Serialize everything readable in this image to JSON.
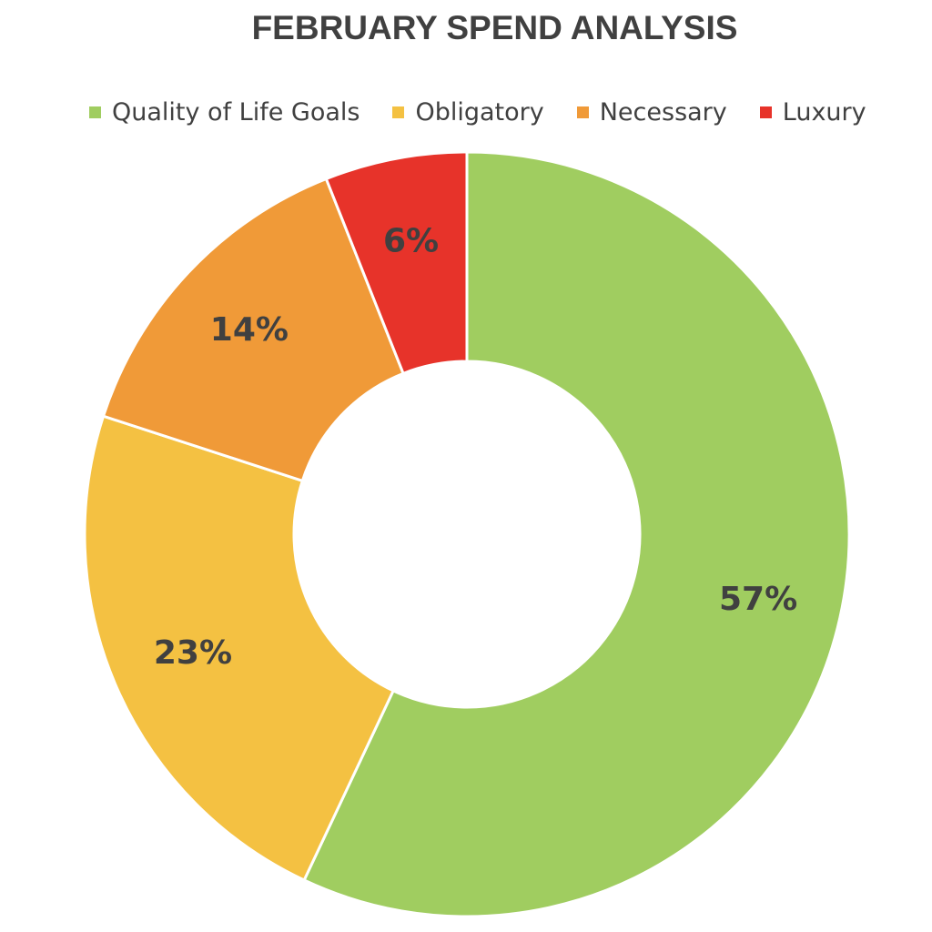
{
  "chart_data": {
    "type": "pie",
    "variant": "donut",
    "title": "FEBRUARY SPEND ANALYSIS",
    "legend_position": "top",
    "categories": [
      "Quality of Life Goals",
      "Obligatory",
      "Necessary",
      "Luxury"
    ],
    "values": [
      57,
      23,
      14,
      6
    ],
    "data_labels": [
      "57%",
      "23%",
      "14%",
      "6%"
    ],
    "colors": [
      "#a0cd60",
      "#f4c142",
      "#f09a38",
      "#e7332a"
    ]
  }
}
